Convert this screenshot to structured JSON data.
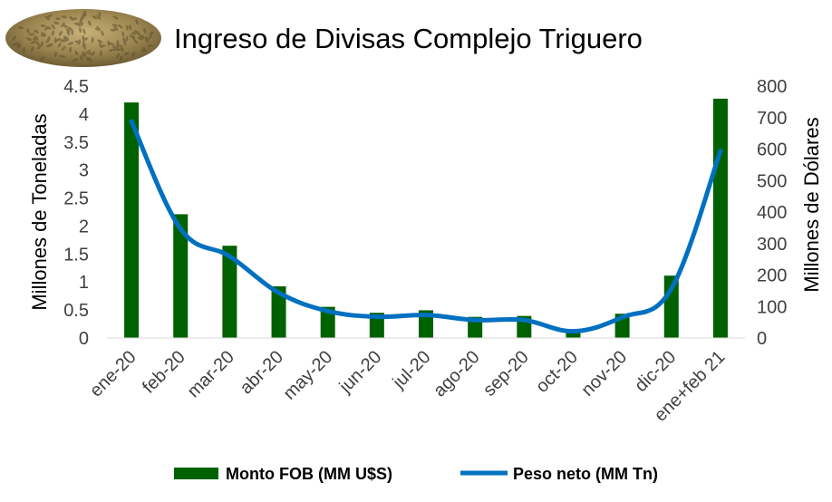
{
  "chart_data": {
    "type": "bar+line",
    "title": "Ingreso de Divisas Complejo Triguero",
    "categories": [
      "ene-20",
      "feb-20",
      "mar-20",
      "abr-20",
      "may-20",
      "jun-20",
      "jul-20",
      "ago-20",
      "sep-20",
      "oct-20",
      "nov-20",
      "dic-20",
      "ene+feb 21"
    ],
    "series": [
      {
        "name": "Monto FOB (MM U$S)",
        "kind": "bar",
        "axis": "right",
        "color": "#006100",
        "values": [
          748,
          393,
          293,
          164,
          99,
          80,
          88,
          67,
          70,
          22,
          77,
          198,
          760
        ]
      },
      {
        "name": "Peso neto (MM Tn)",
        "kind": "line",
        "axis": "left",
        "color": "#0070C0",
        "values": [
          3.87,
          1.95,
          1.46,
          0.81,
          0.48,
          0.38,
          0.41,
          0.32,
          0.32,
          0.12,
          0.37,
          0.88,
          3.34
        ]
      }
    ],
    "yleft": {
      "label": "Millones de Toneladas",
      "ylim": [
        0,
        4.5
      ],
      "ticks": [
        "4.5",
        "4",
        "3.5",
        "3",
        "2.5",
        "2",
        "1.5",
        "1",
        "0.5",
        "0"
      ],
      "tick_values": [
        4.5,
        4,
        3.5,
        3,
        2.5,
        2,
        1.5,
        1,
        0.5,
        0
      ]
    },
    "yright": {
      "label": "Millones de Dólares",
      "ylim": [
        0,
        800
      ],
      "ticks": [
        "800",
        "700",
        "600",
        "500",
        "400",
        "300",
        "200",
        "100",
        "0"
      ],
      "tick_values": [
        800,
        700,
        600,
        500,
        400,
        300,
        200,
        100,
        0
      ]
    },
    "legend": "bottom",
    "grid": false
  },
  "decoration": {
    "image": "wheat-grains-icon"
  }
}
